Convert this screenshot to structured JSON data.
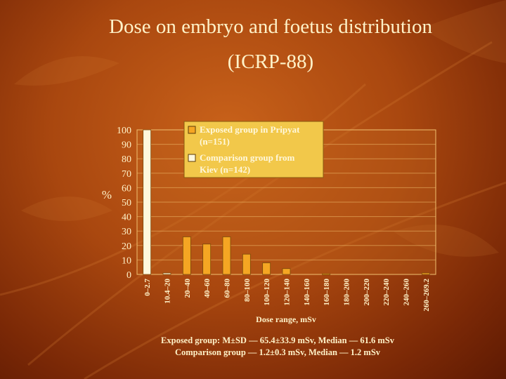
{
  "slide": {
    "title_line1": "Dose on embryo and foetus distribution",
    "title_line2": "(ICRP-88)"
  },
  "stats": {
    "line1": "Exposed group: M±SD — 65.4±33.9 mSv, Median — 61.6 mSv",
    "line2": "Comparison group — 1.2±0.3 mSv, Median — 1.2 mSv"
  },
  "colors": {
    "exposed": "#f5a623",
    "comparison": "#fff8dc",
    "text": "#fff2c8",
    "legend_bg": "#f2c84a"
  },
  "chart_data": {
    "type": "bar",
    "ylabel": "%",
    "xlabel": "Dose range, mSv",
    "ylim": [
      0,
      100
    ],
    "yticks": [
      0,
      10,
      20,
      30,
      40,
      50,
      60,
      70,
      80,
      90,
      100
    ],
    "grid": true,
    "legend_position": "top-right",
    "categories": [
      "0–2.7",
      "10.4–20",
      "20–40",
      "40–60",
      "60–80",
      "80–100",
      "100–120",
      "120–140",
      "140–160",
      "160–180",
      "180–200",
      "200–220",
      "220–240",
      "240–260",
      "260–269.2"
    ],
    "series": [
      {
        "name": "Exposed group in Pripyat (n=151)",
        "values": [
          0,
          0,
          26,
          21,
          26,
          14,
          8,
          4,
          0,
          0.5,
          0,
          0,
          0,
          0,
          1
        ]
      },
      {
        "name": "Comparison group from Kiev (n=142)",
        "values": [
          100,
          1,
          0,
          0,
          0,
          0,
          0,
          0,
          0,
          0,
          0,
          0,
          0,
          0,
          0
        ]
      }
    ]
  }
}
